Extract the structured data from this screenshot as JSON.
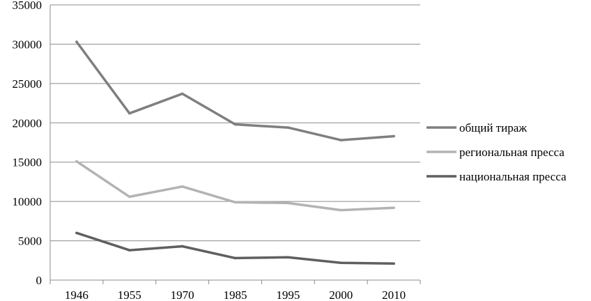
{
  "chart_data": {
    "type": "line",
    "title": "",
    "xlabel": "",
    "ylabel": "",
    "categories": [
      "1946",
      "1955",
      "1970",
      "1985",
      "1995",
      "2000",
      "2010"
    ],
    "ylim": [
      0,
      35000
    ],
    "yticks": [
      0,
      5000,
      10000,
      15000,
      20000,
      25000,
      30000,
      35000
    ],
    "grid": true,
    "legend_position": "right",
    "series": [
      {
        "name": "общий тираж",
        "color": "#7f7f7f",
        "values": [
          30300,
          21200,
          23700,
          19800,
          19400,
          17800,
          18300
        ]
      },
      {
        "name": "региональная пресса",
        "color": "#b3b3b3",
        "values": [
          15100,
          10600,
          11900,
          9900,
          9800,
          8900,
          9200
        ]
      },
      {
        "name": "национальная пресса",
        "color": "#5f5f5f",
        "values": [
          6000,
          3800,
          4300,
          2800,
          2900,
          2200,
          2100
        ]
      }
    ]
  }
}
